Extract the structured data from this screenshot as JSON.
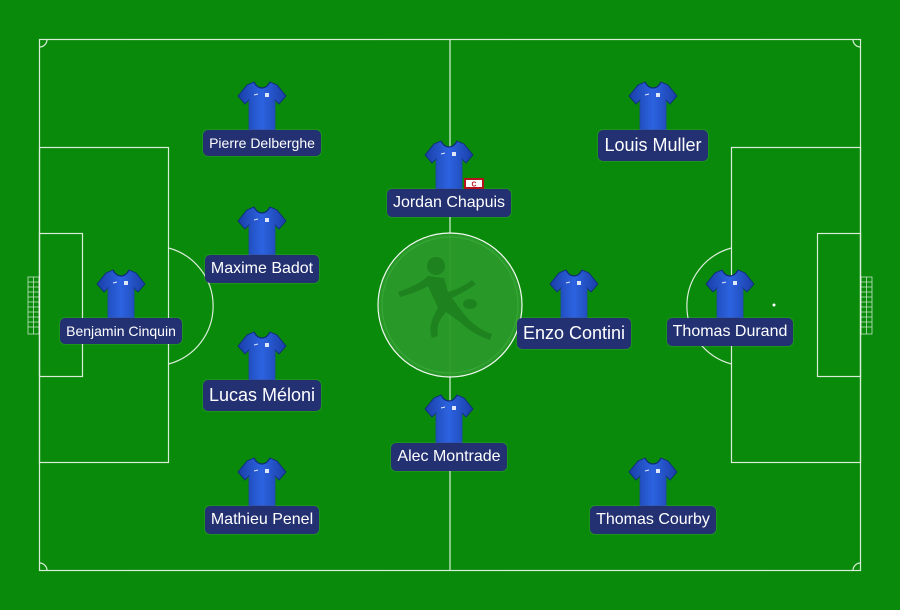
{
  "formation": {
    "players": [
      {
        "id": "benjamin-cinquin",
        "name": "Benjamin Cinquin"
      },
      {
        "id": "pierre-delberghe",
        "name": "Pierre Delberghe"
      },
      {
        "id": "maxime-badot",
        "name": "Maxime Badot"
      },
      {
        "id": "lucas-meloni",
        "name": "Lucas Méloni"
      },
      {
        "id": "mathieu-penel",
        "name": "Mathieu Penel"
      },
      {
        "id": "jordan-chapuis",
        "name": "Jordan Chapuis",
        "captain": true
      },
      {
        "id": "alec-montrade",
        "name": "Alec Montrade"
      },
      {
        "id": "louis-muller",
        "name": "Louis Muller"
      },
      {
        "id": "enzo-contini",
        "name": "Enzo Contini"
      },
      {
        "id": "thomas-durand",
        "name": "Thomas Durand"
      },
      {
        "id": "thomas-courby",
        "name": "Thomas Courby"
      }
    ],
    "captain_badge_label": "C"
  },
  "colors": {
    "pitch": "#0a8a0a",
    "lines": "#ffffff",
    "shirt": "#1f4fcf",
    "name_plate": "#233172",
    "captain_badge": "#b5121b"
  }
}
